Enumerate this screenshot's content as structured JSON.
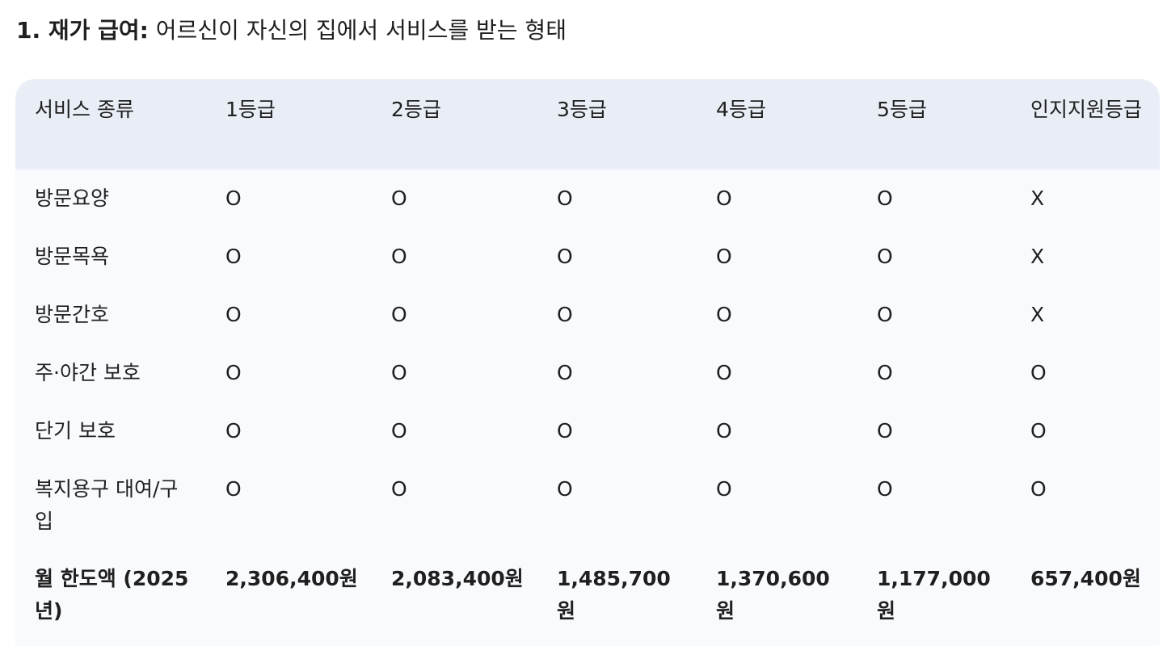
{
  "heading": {
    "number_title": "1. 재가 급여:",
    "description": "어르신이 자신의 집에서 서비스를 받는 형태"
  },
  "table": {
    "headers": [
      "서비스 종류",
      "1등급",
      "2등급",
      "3등급",
      "4등급",
      "5등급",
      "인지지원등급"
    ],
    "rows": [
      [
        "방문요양",
        "O",
        "O",
        "O",
        "O",
        "O",
        "X"
      ],
      [
        "방문목욕",
        "O",
        "O",
        "O",
        "O",
        "O",
        "X"
      ],
      [
        "방문간호",
        "O",
        "O",
        "O",
        "O",
        "O",
        "X"
      ],
      [
        "주·야간 보호",
        "O",
        "O",
        "O",
        "O",
        "O",
        "O"
      ],
      [
        "단기 보호",
        "O",
        "O",
        "O",
        "O",
        "O",
        "O"
      ],
      [
        "복지용구 대여/구입",
        "O",
        "O",
        "O",
        "O",
        "O",
        "O"
      ]
    ],
    "total_row": [
      "월 한도액 (2025년)",
      "2,306,400원",
      "2,083,400원",
      "1,485,700원",
      "1,370,600원",
      "1,177,000원",
      "657,400원"
    ]
  }
}
